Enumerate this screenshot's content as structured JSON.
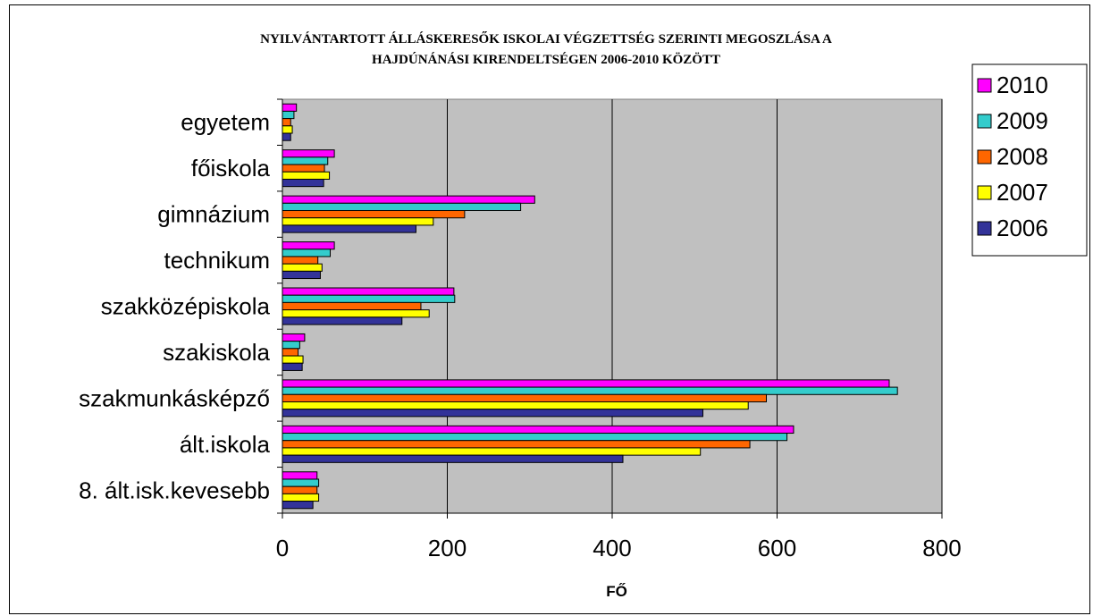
{
  "chart_data": {
    "type": "bar",
    "orientation": "horizontal",
    "title_lines": [
      "NYILVÁNTARTOTT ÁLLÁSKERESŐK ISKOLAI VÉGZETTSÉG SZERINTI MEGOSZLÁSA A",
      "HAJDÚNÁNÁSI KIRENDELTSÉGEN 2006-2010 KÖZÖTT"
    ],
    "xlabel": "FŐ",
    "ylabel": "",
    "xlim": [
      0,
      800
    ],
    "xticks": [
      0,
      200,
      400,
      600,
      800
    ],
    "grid": true,
    "plot_background": "#c0c0c0",
    "legend_position": "right",
    "categories": [
      "egyetem",
      "főiskola",
      "gimnázium",
      "technikum",
      "szakközépiskola",
      "szakiskola",
      "szakmunkásképző",
      "ált.iskola",
      "8. ált.isk.kevesebb"
    ],
    "series": [
      {
        "name": "2010",
        "color": "#ff00ff",
        "values": [
          17,
          63,
          306,
          63,
          208,
          27,
          736,
          620,
          42
        ]
      },
      {
        "name": "2009",
        "color": "#33cccc",
        "values": [
          14,
          55,
          289,
          58,
          209,
          21,
          746,
          612,
          44
        ]
      },
      {
        "name": "2008",
        "color": "#ff6600",
        "values": [
          10,
          51,
          221,
          43,
          168,
          19,
          587,
          567,
          42
        ]
      },
      {
        "name": "2007",
        "color": "#ffff00",
        "values": [
          12,
          57,
          183,
          48,
          178,
          25,
          565,
          507,
          44
        ]
      },
      {
        "name": "2006",
        "color": "#333399",
        "values": [
          10,
          50,
          162,
          46,
          145,
          24,
          510,
          413,
          37
        ]
      }
    ]
  }
}
